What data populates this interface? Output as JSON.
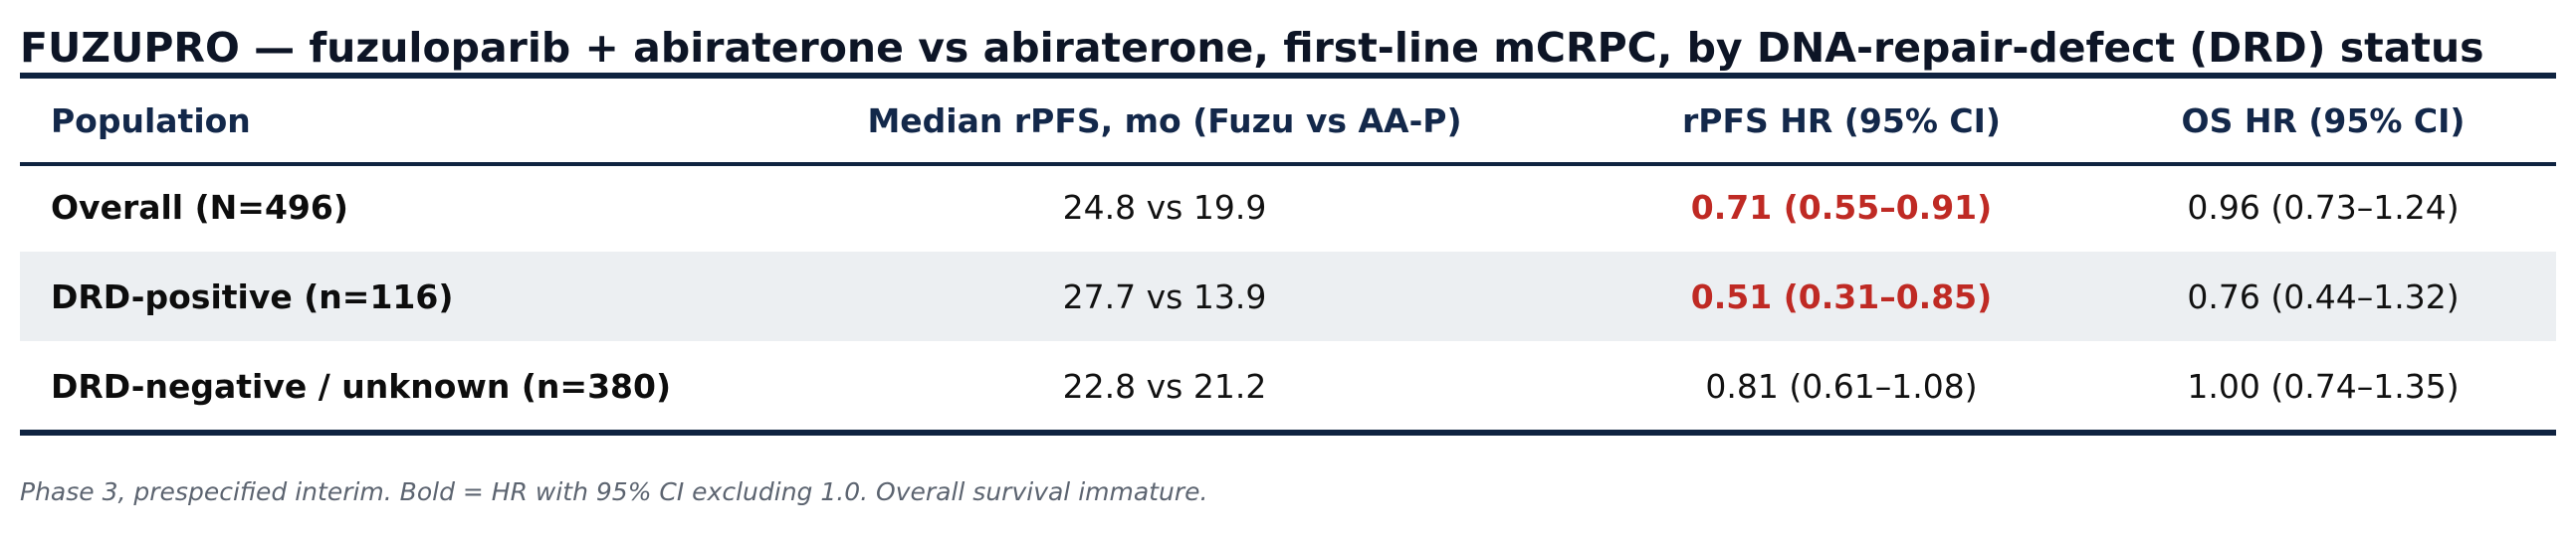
{
  "chart_data": {
    "type": "table",
    "title": "FUZUPRO — fuzuloparib + abiraterone vs abiraterone, first-line mCRPC, by DNA-repair-defect (DRD) status",
    "columns": [
      "Population",
      "Median rPFS, mo (Fuzu vs AA-P)",
      "rPFS HR (95% CI)",
      "OS HR (95% CI)"
    ],
    "rows": [
      {
        "population": "Overall (N=496)",
        "median_rpfs": "24.8 vs 19.9",
        "rpfs_hr": "0.71 (0.55–0.91)",
        "rpfs_hr_significant": true,
        "os_hr": "0.96 (0.73–1.24)",
        "os_hr_significant": false,
        "shaded": false
      },
      {
        "population": "DRD-positive (n=116)",
        "median_rpfs": "27.7 vs 13.9",
        "rpfs_hr": "0.51 (0.31–0.85)",
        "rpfs_hr_significant": true,
        "os_hr": "0.76 (0.44–1.32)",
        "os_hr_significant": false,
        "shaded": true
      },
      {
        "population": "DRD-negative / unknown (n=380)",
        "median_rpfs": "22.8 vs 21.2",
        "rpfs_hr": "0.81 (0.61–1.08)",
        "rpfs_hr_significant": false,
        "os_hr": "1.00 (0.74–1.35)",
        "os_hr_significant": false,
        "shaded": false
      }
    ],
    "footnote": "Phase 3, prespecified interim. Bold = HR with 95% CI excluding 1.0. Overall survival immature."
  },
  "colors": {
    "title_text": "#0d1526",
    "rule": "#0f2340",
    "header_text": "#13284a",
    "significant_text": "#bf2a24",
    "shaded_row": "#eceff2",
    "footnote_text": "#5c6470"
  }
}
